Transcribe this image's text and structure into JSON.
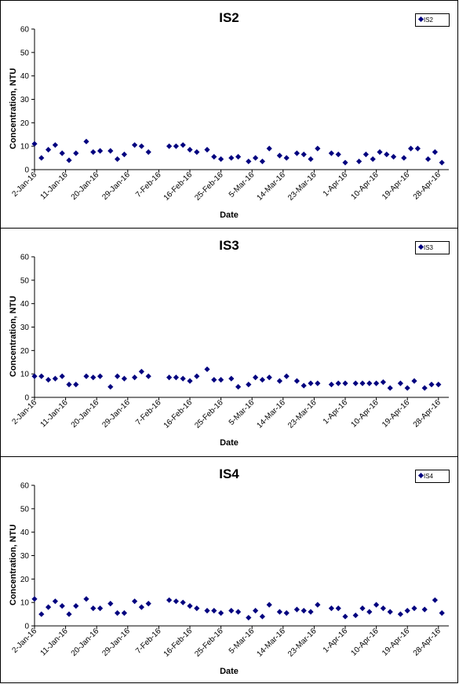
{
  "chart_data": [
    {
      "type": "scatter",
      "title": "IS2",
      "xlabel": "Date",
      "ylabel": "Concentration, NTU",
      "legend": [
        "IS2"
      ],
      "legend_position": "top-right",
      "ylim": [
        0,
        60
      ],
      "yticks": [
        "0",
        "10",
        "20",
        "30",
        "40",
        "50",
        "60"
      ],
      "xticks": [
        "2-Jan-16",
        "11-Jan-16",
        "20-Jan-16",
        "29-Jan-16",
        "7-Feb-16",
        "16-Feb-16",
        "25-Feb-16",
        "5-Mar-16",
        "14-Mar-16",
        "23-Mar-16",
        "1-Apr-16",
        "10-Apr-16",
        "19-Apr-16",
        "28-Apr-16"
      ],
      "xlim": [
        "2016-01-02",
        "2016-05-01"
      ],
      "grid": false,
      "color": "#00007f",
      "series": [
        {
          "name": "IS2",
          "points": [
            [
              "2016-01-02",
              11
            ],
            [
              "2016-01-04",
              5
            ],
            [
              "2016-01-06",
              8.5
            ],
            [
              "2016-01-08",
              10.5
            ],
            [
              "2016-01-10",
              7
            ],
            [
              "2016-01-12",
              4
            ],
            [
              "2016-01-14",
              7
            ],
            [
              "2016-01-17",
              12
            ],
            [
              "2016-01-19",
              7.5
            ],
            [
              "2016-01-21",
              8
            ],
            [
              "2016-01-24",
              8
            ],
            [
              "2016-01-26",
              4.5
            ],
            [
              "2016-01-28",
              6.5
            ],
            [
              "2016-01-31",
              10.5
            ],
            [
              "2016-02-02",
              10
            ],
            [
              "2016-02-04",
              7.5
            ],
            [
              "2016-02-10",
              10
            ],
            [
              "2016-02-12",
              10
            ],
            [
              "2016-02-14",
              10.5
            ],
            [
              "2016-02-16",
              8.5
            ],
            [
              "2016-02-18",
              7.5
            ],
            [
              "2016-02-21",
              8.5
            ],
            [
              "2016-02-23",
              5.5
            ],
            [
              "2016-02-25",
              4.5
            ],
            [
              "2016-02-28",
              5
            ],
            [
              "2016-03-01",
              5.5
            ],
            [
              "2016-03-04",
              3.5
            ],
            [
              "2016-03-06",
              5
            ],
            [
              "2016-03-08",
              3.5
            ],
            [
              "2016-03-10",
              9
            ],
            [
              "2016-03-13",
              6
            ],
            [
              "2016-03-15",
              5
            ],
            [
              "2016-03-18",
              7
            ],
            [
              "2016-03-20",
              6.5
            ],
            [
              "2016-03-22",
              4.5
            ],
            [
              "2016-03-24",
              9
            ],
            [
              "2016-03-28",
              7
            ],
            [
              "2016-03-30",
              6.5
            ],
            [
              "2016-04-01",
              3
            ],
            [
              "2016-04-05",
              3.5
            ],
            [
              "2016-04-07",
              6.5
            ],
            [
              "2016-04-09",
              4.5
            ],
            [
              "2016-04-11",
              7.5
            ],
            [
              "2016-04-13",
              6.5
            ],
            [
              "2016-04-15",
              5.5
            ],
            [
              "2016-04-18",
              5
            ],
            [
              "2016-04-20",
              9
            ],
            [
              "2016-04-22",
              9
            ],
            [
              "2016-04-25",
              4.5
            ],
            [
              "2016-04-27",
              7.5
            ],
            [
              "2016-04-29",
              3
            ]
          ]
        }
      ]
    },
    {
      "type": "scatter",
      "title": "IS3",
      "xlabel": "Date",
      "ylabel": "Concentration, NTU",
      "legend": [
        "IS3"
      ],
      "legend_position": "top-right",
      "ylim": [
        0,
        60
      ],
      "yticks": [
        "0",
        "10",
        "20",
        "30",
        "40",
        "50",
        "60"
      ],
      "xticks": [
        "2-Jan-16",
        "11-Jan-16",
        "20-Jan-16",
        "29-Jan-16",
        "7-Feb-16",
        "16-Feb-16",
        "25-Feb-16",
        "5-Mar-16",
        "14-Mar-16",
        "23-Mar-16",
        "1-Apr-16",
        "10-Apr-16",
        "19-Apr-16",
        "28-Apr-16"
      ],
      "xlim": [
        "2016-01-02",
        "2016-05-01"
      ],
      "grid": false,
      "color": "#00007f",
      "series": [
        {
          "name": "IS3",
          "points": [
            [
              "2016-01-02",
              9
            ],
            [
              "2016-01-04",
              9
            ],
            [
              "2016-01-06",
              7.5
            ],
            [
              "2016-01-08",
              8
            ],
            [
              "2016-01-10",
              9
            ],
            [
              "2016-01-12",
              5.5
            ],
            [
              "2016-01-14",
              5.5
            ],
            [
              "2016-01-17",
              9
            ],
            [
              "2016-01-19",
              8.5
            ],
            [
              "2016-01-21",
              9
            ],
            [
              "2016-01-24",
              4.5
            ],
            [
              "2016-01-26",
              9
            ],
            [
              "2016-01-28",
              8
            ],
            [
              "2016-01-31",
              8.5
            ],
            [
              "2016-02-02",
              11
            ],
            [
              "2016-02-04",
              9
            ],
            [
              "2016-02-10",
              8.5
            ],
            [
              "2016-02-12",
              8.5
            ],
            [
              "2016-02-14",
              8
            ],
            [
              "2016-02-16",
              7
            ],
            [
              "2016-02-18",
              9
            ],
            [
              "2016-02-21",
              12
            ],
            [
              "2016-02-23",
              7.5
            ],
            [
              "2016-02-25",
              7.5
            ],
            [
              "2016-02-28",
              8
            ],
            [
              "2016-03-01",
              4.5
            ],
            [
              "2016-03-04",
              5.5
            ],
            [
              "2016-03-06",
              8.5
            ],
            [
              "2016-03-08",
              7.5
            ],
            [
              "2016-03-10",
              8.5
            ],
            [
              "2016-03-13",
              7
            ],
            [
              "2016-03-15",
              9
            ],
            [
              "2016-03-18",
              7
            ],
            [
              "2016-03-20",
              5
            ],
            [
              "2016-03-22",
              6
            ],
            [
              "2016-03-24",
              6
            ],
            [
              "2016-03-28",
              5.5
            ],
            [
              "2016-03-30",
              6
            ],
            [
              "2016-04-01",
              6
            ],
            [
              "2016-04-04",
              6
            ],
            [
              "2016-04-06",
              6
            ],
            [
              "2016-04-08",
              6
            ],
            [
              "2016-04-10",
              6
            ],
            [
              "2016-04-12",
              6.5
            ],
            [
              "2016-04-14",
              4
            ],
            [
              "2016-04-17",
              6
            ],
            [
              "2016-04-19",
              4
            ],
            [
              "2016-04-21",
              7
            ],
            [
              "2016-04-24",
              4
            ],
            [
              "2016-04-26",
              5.5
            ],
            [
              "2016-04-28",
              5.5
            ]
          ]
        }
      ]
    },
    {
      "type": "scatter",
      "title": "IS4",
      "xlabel": "Date",
      "ylabel": "Concentration, NTU",
      "legend": [
        "IS4"
      ],
      "legend_position": "top-right",
      "ylim": [
        0,
        60
      ],
      "yticks": [
        "0",
        "10",
        "20",
        "30",
        "40",
        "50",
        "60"
      ],
      "xticks": [
        "2-Jan-16",
        "11-Jan-16",
        "20-Jan-16",
        "29-Jan-16",
        "7-Feb-16",
        "16-Feb-16",
        "25-Feb-16",
        "5-Mar-16",
        "14-Mar-16",
        "23-Mar-16",
        "1-Apr-16",
        "10-Apr-16",
        "19-Apr-16",
        "28-Apr-16"
      ],
      "xlim": [
        "2016-01-02",
        "2016-05-01"
      ],
      "grid": false,
      "color": "#00007f",
      "series": [
        {
          "name": "IS4",
          "points": [
            [
              "2016-01-02",
              11.5
            ],
            [
              "2016-01-04",
              5
            ],
            [
              "2016-01-06",
              8
            ],
            [
              "2016-01-08",
              10.5
            ],
            [
              "2016-01-10",
              8.5
            ],
            [
              "2016-01-12",
              5
            ],
            [
              "2016-01-14",
              8.5
            ],
            [
              "2016-01-17",
              11.5
            ],
            [
              "2016-01-19",
              7.5
            ],
            [
              "2016-01-21",
              7.5
            ],
            [
              "2016-01-24",
              9.5
            ],
            [
              "2016-01-26",
              5.5
            ],
            [
              "2016-01-28",
              5.5
            ],
            [
              "2016-01-31",
              10.5
            ],
            [
              "2016-02-02",
              8
            ],
            [
              "2016-02-04",
              9.5
            ],
            [
              "2016-02-10",
              11
            ],
            [
              "2016-02-12",
              10.5
            ],
            [
              "2016-02-14",
              10
            ],
            [
              "2016-02-16",
              8.5
            ],
            [
              "2016-02-18",
              7.5
            ],
            [
              "2016-02-21",
              6.5
            ],
            [
              "2016-02-23",
              6.5
            ],
            [
              "2016-02-25",
              5.5
            ],
            [
              "2016-02-28",
              6.5
            ],
            [
              "2016-03-01",
              6
            ],
            [
              "2016-03-04",
              3.5
            ],
            [
              "2016-03-06",
              6.5
            ],
            [
              "2016-03-08",
              4
            ],
            [
              "2016-03-10",
              9
            ],
            [
              "2016-03-13",
              6
            ],
            [
              "2016-03-15",
              5.5
            ],
            [
              "2016-03-18",
              7
            ],
            [
              "2016-03-20",
              6.5
            ],
            [
              "2016-03-22",
              6
            ],
            [
              "2016-03-24",
              9
            ],
            [
              "2016-03-28",
              7.5
            ],
            [
              "2016-03-30",
              7.5
            ],
            [
              "2016-04-01",
              4
            ],
            [
              "2016-04-04",
              4.5
            ],
            [
              "2016-04-06",
              7.5
            ],
            [
              "2016-04-08",
              6
            ],
            [
              "2016-04-10",
              9
            ],
            [
              "2016-04-12",
              7.5
            ],
            [
              "2016-04-14",
              6
            ],
            [
              "2016-04-17",
              5
            ],
            [
              "2016-04-19",
              6.5
            ],
            [
              "2016-04-21",
              7.5
            ],
            [
              "2016-04-24",
              7
            ],
            [
              "2016-04-27",
              11
            ],
            [
              "2016-04-29",
              5.5
            ]
          ]
        }
      ]
    }
  ]
}
